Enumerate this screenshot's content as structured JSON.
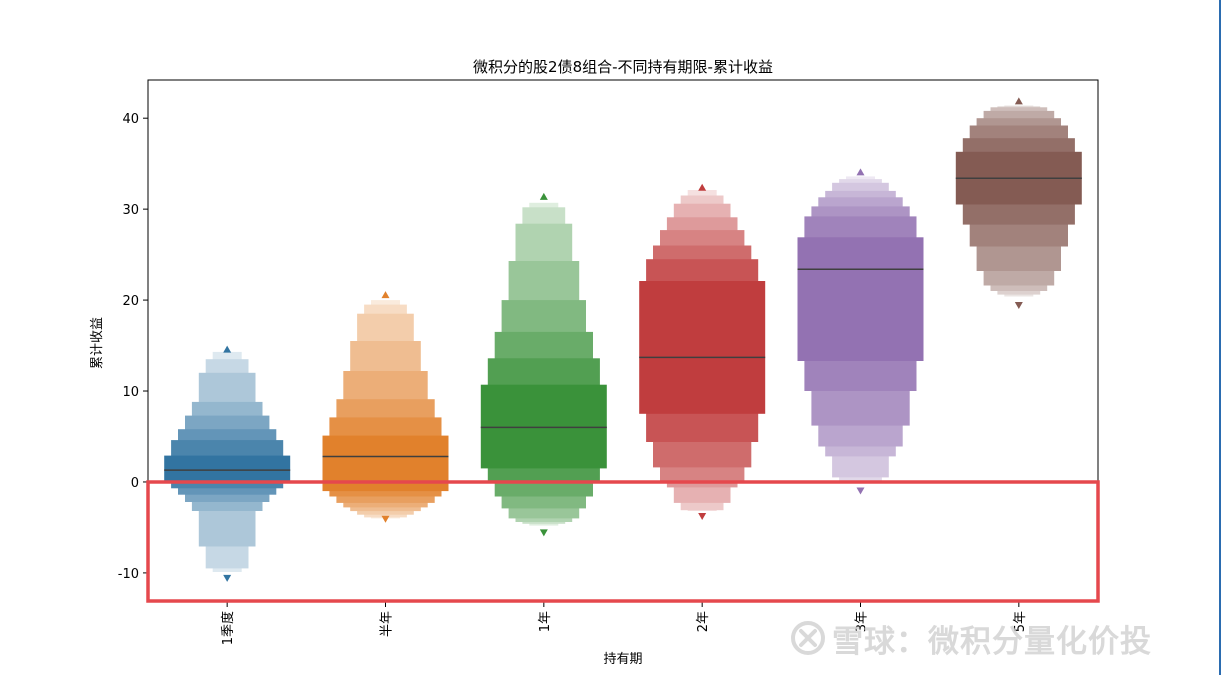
{
  "chart_data": {
    "type": "boxen",
    "title": "微积分的股2债8组合-不同持有期限-累计收益",
    "xlabel": "持有期",
    "ylabel": "累计收益",
    "ylim": [
      -13.2,
      44.2
    ],
    "yticks": [
      -10,
      0,
      10,
      20,
      30,
      40
    ],
    "categories": [
      "1季度",
      "半年",
      "1年",
      "2年",
      "3年",
      "5年"
    ],
    "colors": [
      "#3274a1",
      "#e1812c",
      "#3a923a",
      "#c03d3e",
      "#9372b2",
      "#845b53"
    ],
    "series": [
      {
        "category": "1季度",
        "median": 1.3,
        "outlier_high": 14.6,
        "outlier_low": -10.6,
        "levels": [
          [
            0.1,
            2.9
          ],
          [
            -0.7,
            4.6
          ],
          [
            -1.4,
            5.8
          ],
          [
            -2.2,
            7.3
          ],
          [
            -3.2,
            8.8
          ],
          [
            -7.1,
            12.0
          ],
          [
            -9.5,
            13.5
          ],
          [
            -9.9,
            14.3
          ]
        ]
      },
      {
        "category": "半年",
        "median": 2.8,
        "outlier_high": 20.6,
        "outlier_low": -4.1,
        "levels": [
          [
            -1.0,
            5.1
          ],
          [
            -1.6,
            7.1
          ],
          [
            -2.3,
            9.1
          ],
          [
            -2.8,
            12.2
          ],
          [
            -3.2,
            15.5
          ],
          [
            -3.6,
            18.5
          ],
          [
            -3.9,
            19.5
          ],
          [
            -4.0,
            20.0
          ]
        ]
      },
      {
        "category": "1年",
        "median": 6.0,
        "outlier_high": 31.4,
        "outlier_low": -5.6,
        "levels": [
          [
            1.5,
            10.7
          ],
          [
            -0.1,
            13.6
          ],
          [
            -1.6,
            16.5
          ],
          [
            -2.9,
            20.0
          ],
          [
            -4.0,
            24.3
          ],
          [
            -4.4,
            28.4
          ],
          [
            -4.6,
            30.2
          ],
          [
            -4.8,
            30.7
          ]
        ]
      },
      {
        "category": "2年",
        "median": 13.7,
        "outlier_high": 32.4,
        "outlier_low": -3.8,
        "levels": [
          [
            7.5,
            22.1
          ],
          [
            4.4,
            24.5
          ],
          [
            1.6,
            26.0
          ],
          [
            0.1,
            27.7
          ],
          [
            -0.6,
            29.1
          ],
          [
            -2.3,
            30.6
          ],
          [
            -3.1,
            31.5
          ],
          [
            -3.2,
            32.1
          ]
        ]
      },
      {
        "category": "3年",
        "median": 23.4,
        "outlier_high": 34.1,
        "outlier_low": -1.0,
        "levels": [
          [
            13.3,
            26.9
          ],
          [
            10.0,
            29.2
          ],
          [
            6.2,
            30.3
          ],
          [
            3.9,
            31.3
          ],
          [
            2.8,
            32.0
          ],
          [
            0.5,
            32.9
          ],
          [
            0.1,
            33.3
          ],
          [
            0.0,
            33.6
          ]
        ]
      },
      {
        "category": "5年",
        "median": 33.4,
        "outlier_high": 41.9,
        "outlier_low": 19.4,
        "levels": [
          [
            30.5,
            36.3
          ],
          [
            28.3,
            37.8
          ],
          [
            25.9,
            39.2
          ],
          [
            23.2,
            40.0
          ],
          [
            21.6,
            40.8
          ],
          [
            21.0,
            41.2
          ],
          [
            20.6,
            41.3
          ],
          [
            20.4,
            41.4
          ]
        ]
      }
    ]
  },
  "annotation": {
    "color": "#e5484d"
  },
  "watermark": {
    "text": "雪球：微积分量化价投"
  }
}
